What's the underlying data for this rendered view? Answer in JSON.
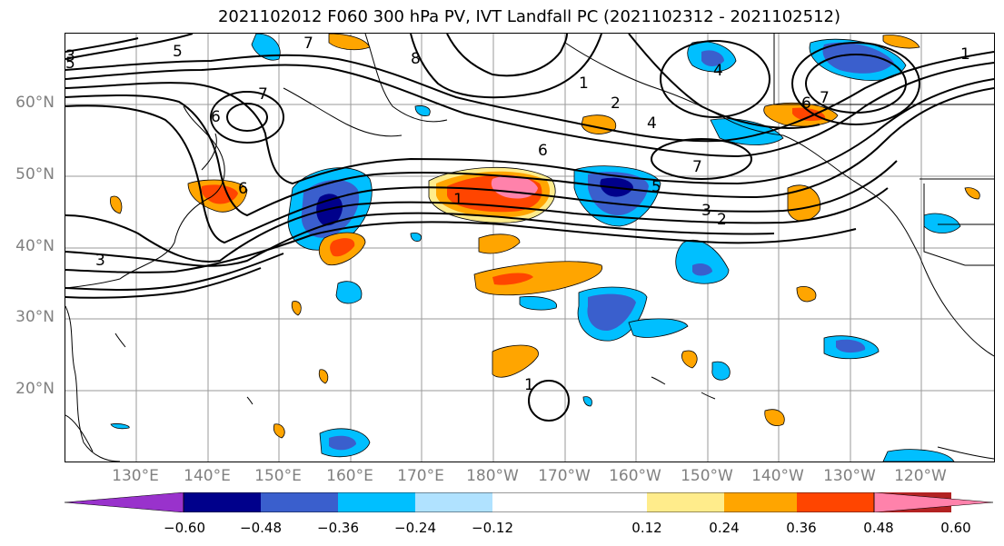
{
  "title": "2021102012 F060 300 hPa PV, IVT Landfall PC (2021102312 - 2021102512)",
  "map": {
    "lat_labels": [
      "60°N",
      "50°N",
      "40°N",
      "30°N",
      "20°N"
    ],
    "lon_labels": [
      "130°E",
      "140°E",
      "150°E",
      "160°E",
      "170°E",
      "180°W",
      "170°W",
      "160°W",
      "150°W",
      "140°W",
      "130°W",
      "120°W"
    ],
    "contour_labels": [
      "7",
      "6",
      "5",
      "4",
      "3",
      "2",
      "1",
      "7",
      "6",
      "7",
      "6",
      "5",
      "3",
      "2",
      "1",
      "4",
      "6",
      "7",
      "5",
      "3",
      "1",
      "8",
      "1"
    ]
  },
  "colorbar": {
    "tick_labels": [
      "−0.60",
      "−0.48",
      "−0.36",
      "−0.24",
      "−0.12",
      "0.12",
      "0.24",
      "0.36",
      "0.48",
      "0.60"
    ],
    "colors": [
      "#9932cc",
      "#00008b",
      "#3a5fcd",
      "#00bfff",
      "#b0e2ff",
      "#ffffff",
      "#ffec8b",
      "#ffa500",
      "#ff4500",
      "#b22222",
      "#ff82ab"
    ]
  }
}
